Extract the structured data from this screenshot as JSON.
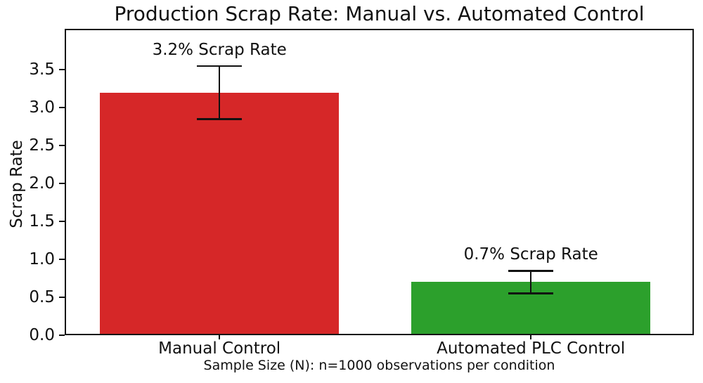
{
  "chart_data": {
    "type": "bar",
    "title": "Production Scrap Rate: Manual vs. Automated Control",
    "xlabel": "Sample Size (N): n=1000 observations per condition",
    "ylabel": "Scrap Rate",
    "categories": [
      "Manual Control",
      "Automated PLC Control"
    ],
    "values": [
      3.2,
      0.7
    ],
    "error_bars": [
      0.35,
      0.15
    ],
    "bar_annotations": [
      "3.2% Scrap Rate",
      "0.7% Scrap Rate"
    ],
    "bar_colors": [
      "#d62728",
      "#2ca02c"
    ],
    "yticks": [
      "0.0",
      "0.5",
      "1.0",
      "1.5",
      "2.0",
      "2.5",
      "3.0",
      "3.5"
    ],
    "ylim": [
      0,
      4.04
    ],
    "grid": false,
    "legend": "none",
    "axis_color": "#151515",
    "text_color": "#111111",
    "background": "#ffffff"
  }
}
